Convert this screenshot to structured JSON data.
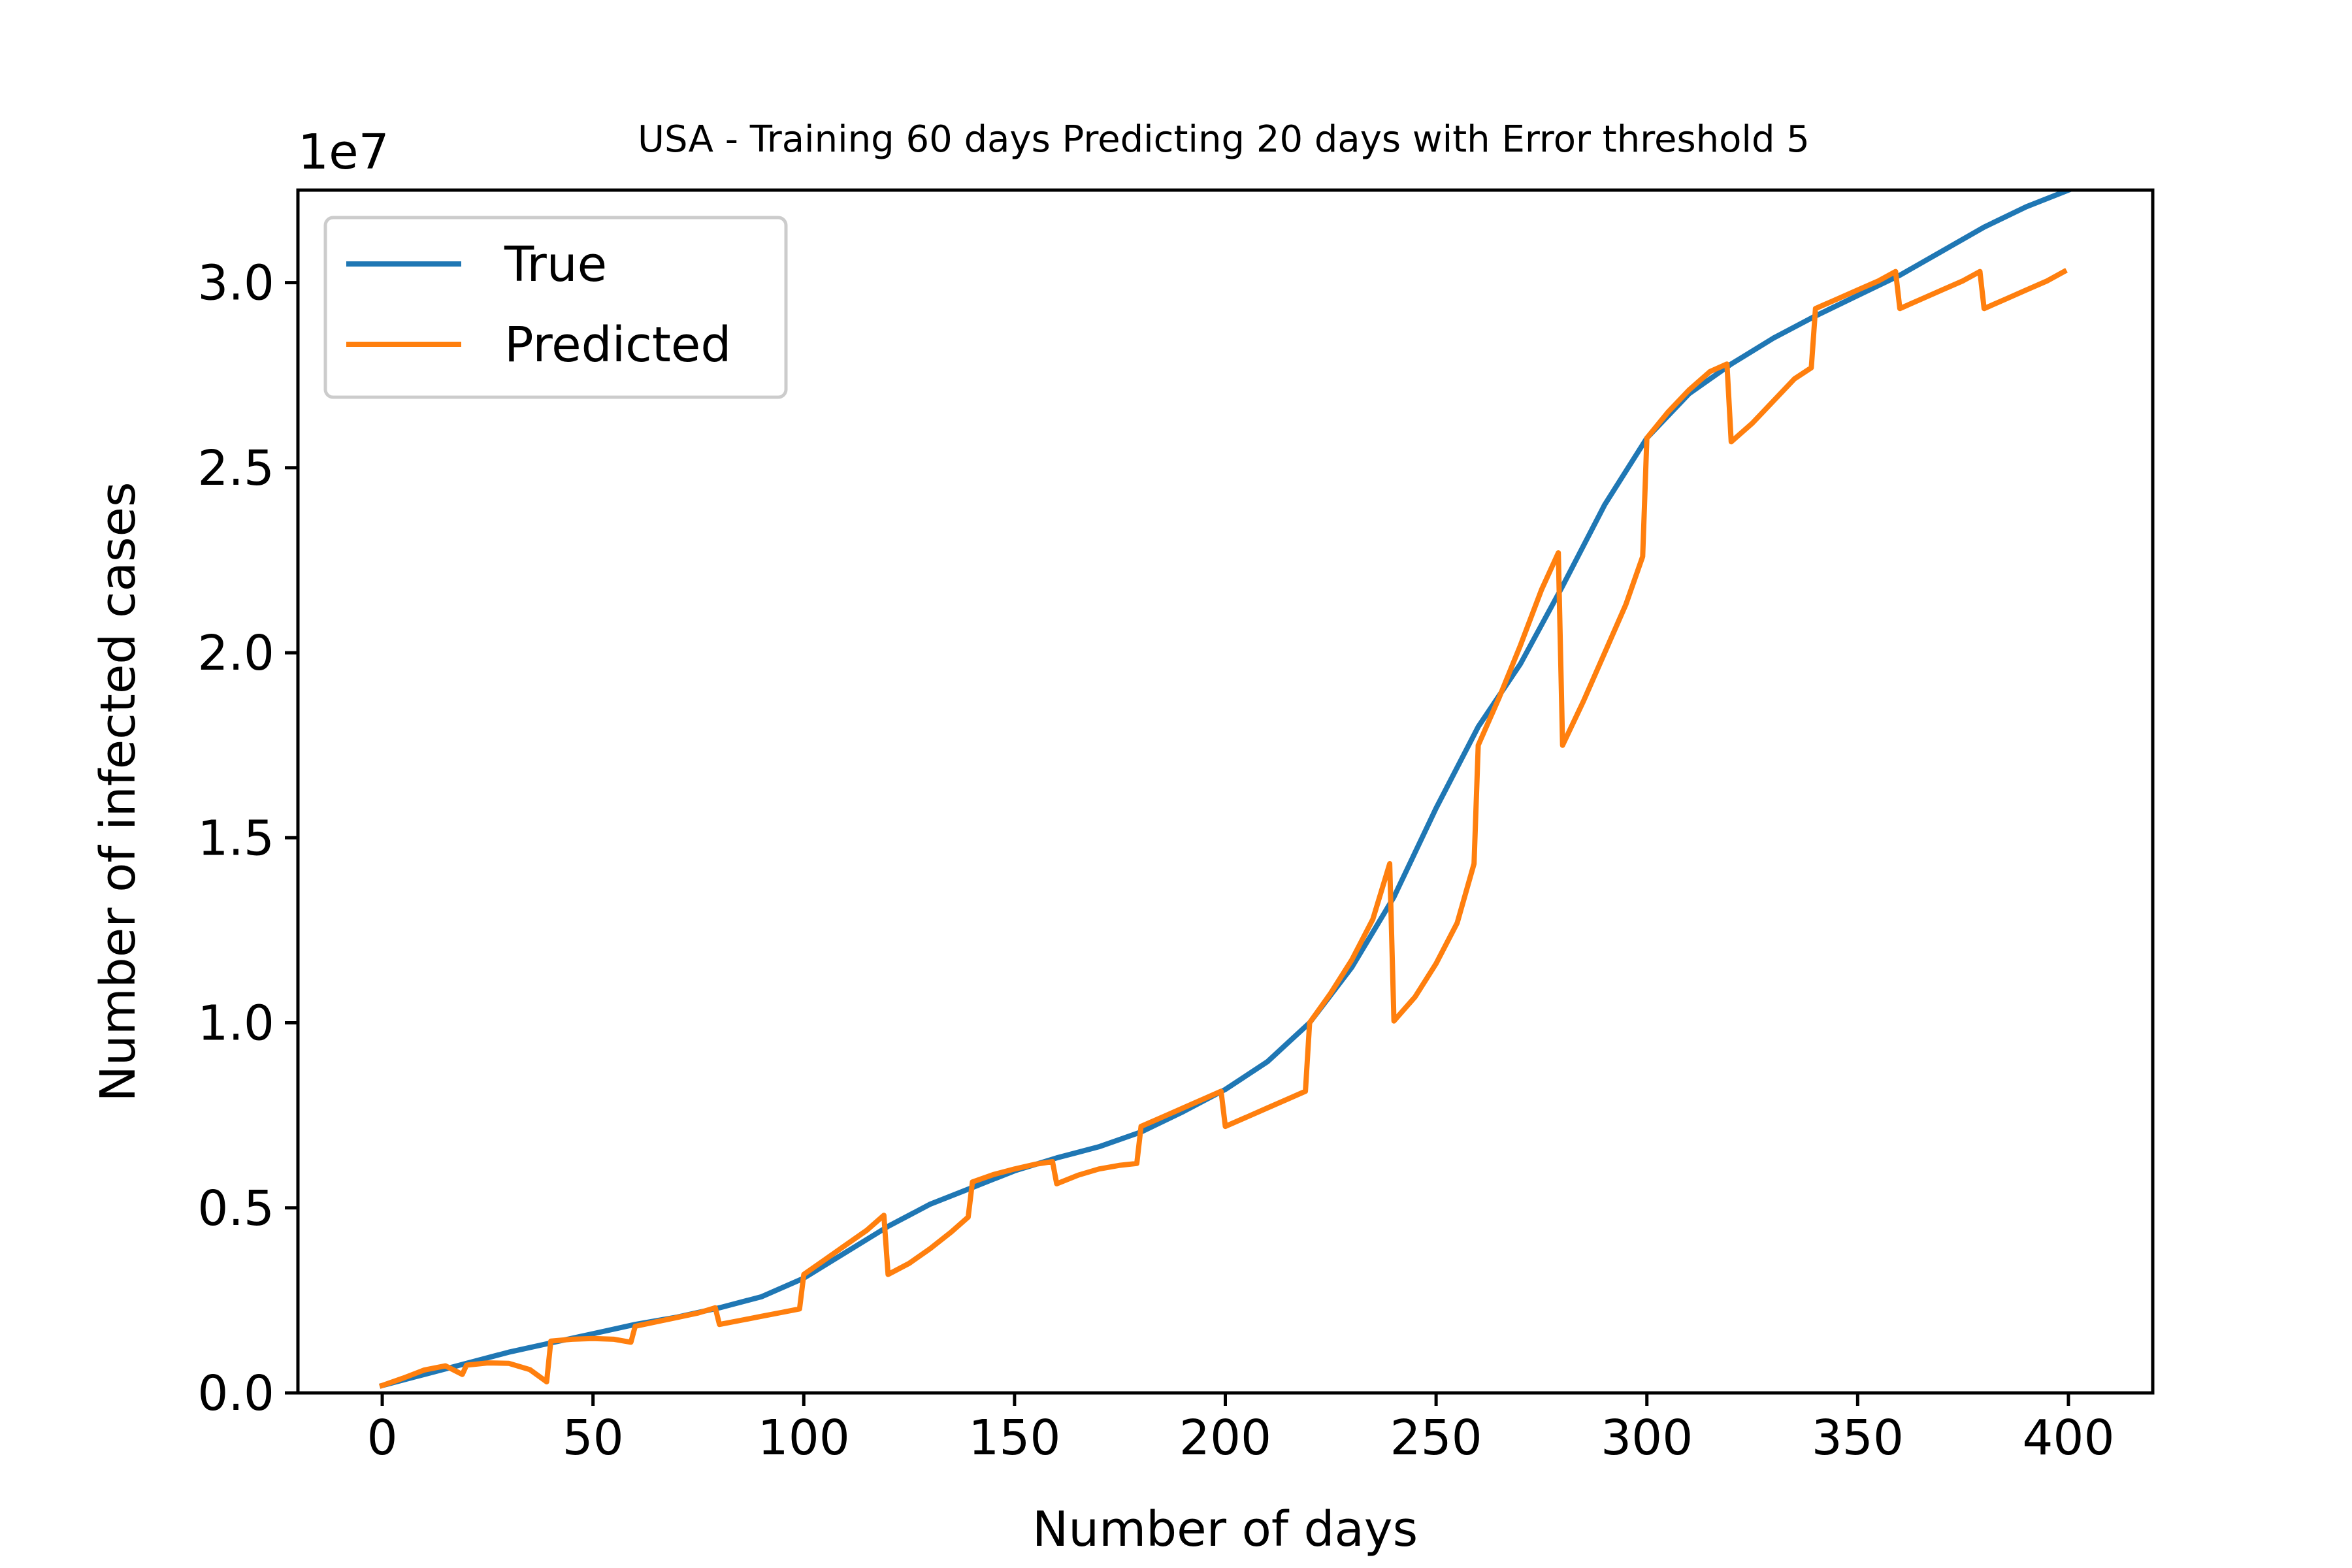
{
  "chart_data": {
    "type": "line",
    "title": "USA - Training 60 days Predicting 20 days with Error threshold 5",
    "xlabel": "Number of days",
    "ylabel": "Number of infected cases",
    "y_multiplier_label": "1e7",
    "xlim": [
      -20,
      420
    ],
    "ylim": [
      0,
      3.25
    ],
    "xticks": [
      0,
      50,
      100,
      150,
      200,
      250,
      300,
      350,
      400
    ],
    "xtick_labels": [
      "0",
      "50",
      "100",
      "150",
      "200",
      "250",
      "300",
      "350",
      "400"
    ],
    "yticks": [
      0,
      0.5,
      1.0,
      1.5,
      2.0,
      2.5,
      3.0
    ],
    "ytick_labels": [
      "0.0",
      "0.5",
      "1.0",
      "1.5",
      "2.0",
      "2.5",
      "3.0"
    ],
    "grid": false,
    "legend_position": "upper-left",
    "series": [
      {
        "name": "True",
        "color": "#1f77b4",
        "x": [
          0,
          10,
          20,
          30,
          40,
          50,
          60,
          70,
          80,
          90,
          100,
          110,
          120,
          130,
          140,
          150,
          160,
          170,
          180,
          190,
          200,
          210,
          220,
          230,
          240,
          250,
          260,
          270,
          280,
          290,
          300,
          310,
          320,
          330,
          340,
          350,
          360,
          370,
          380,
          390,
          400
        ],
        "y": [
          0.02,
          0.05,
          0.08,
          0.11,
          0.135,
          0.16,
          0.185,
          0.205,
          0.23,
          0.26,
          0.31,
          0.38,
          0.45,
          0.51,
          0.555,
          0.6,
          0.635,
          0.665,
          0.705,
          0.76,
          0.82,
          0.895,
          1.0,
          1.15,
          1.34,
          1.58,
          1.8,
          1.97,
          2.18,
          2.4,
          2.58,
          2.7,
          2.78,
          2.85,
          2.91,
          2.965,
          3.02,
          3.085,
          3.15,
          3.205,
          3.25
        ]
      },
      {
        "name": "Predicted",
        "color": "#ff7f0e",
        "x": [
          0,
          5,
          10,
          15,
          19,
          20,
          25,
          30,
          35,
          39,
          40,
          45,
          50,
          55,
          59,
          60,
          65,
          70,
          75,
          79,
          80,
          85,
          90,
          95,
          99,
          100,
          105,
          110,
          115,
          119,
          120,
          125,
          130,
          135,
          139,
          140,
          145,
          150,
          155,
          159,
          160,
          165,
          170,
          175,
          179,
          180,
          185,
          190,
          195,
          199,
          200,
          205,
          210,
          215,
          219,
          220,
          225,
          230,
          235,
          239,
          240,
          245,
          250,
          255,
          259,
          260,
          265,
          270,
          275,
          279,
          280,
          285,
          290,
          295,
          299,
          300,
          305,
          310,
          315,
          319,
          320,
          325,
          330,
          335,
          339,
          340,
          345,
          350,
          355,
          359,
          360,
          365,
          370,
          375,
          379,
          380,
          385,
          390,
          395,
          399
        ],
        "y": [
          0.02,
          0.04,
          0.062,
          0.073,
          0.05,
          0.075,
          0.081,
          0.08,
          0.063,
          0.03,
          0.14,
          0.145,
          0.147,
          0.145,
          0.137,
          0.18,
          0.192,
          0.204,
          0.216,
          0.23,
          0.185,
          0.196,
          0.207,
          0.218,
          0.227,
          0.32,
          0.36,
          0.4,
          0.44,
          0.48,
          0.32,
          0.35,
          0.39,
          0.435,
          0.475,
          0.57,
          0.59,
          0.605,
          0.618,
          0.625,
          0.565,
          0.588,
          0.605,
          0.615,
          0.62,
          0.72,
          0.745,
          0.77,
          0.795,
          0.815,
          0.72,
          0.745,
          0.77,
          0.795,
          0.815,
          1.0,
          1.08,
          1.17,
          1.28,
          1.43,
          1.005,
          1.07,
          1.16,
          1.27,
          1.43,
          1.75,
          1.88,
          2.02,
          2.17,
          2.27,
          1.75,
          1.87,
          2.0,
          2.13,
          2.26,
          2.58,
          2.65,
          2.71,
          2.76,
          2.78,
          2.57,
          2.62,
          2.68,
          2.74,
          2.77,
          2.93,
          2.955,
          2.98,
          3.005,
          3.03,
          2.93,
          2.955,
          2.98,
          3.005,
          3.03,
          2.93,
          2.955,
          2.98,
          3.005,
          3.03
        ]
      }
    ]
  }
}
